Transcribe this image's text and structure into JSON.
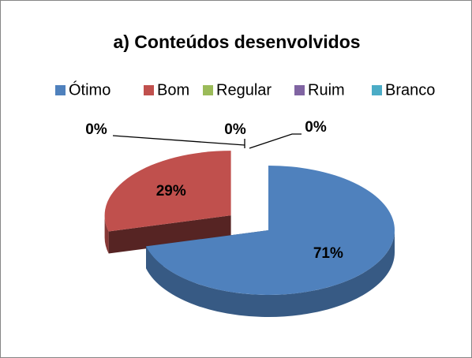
{
  "chart_data": {
    "type": "pie",
    "title": "a) Conteúdos desenvolvidos",
    "categories": [
      "Ótimo",
      "Bom",
      "Regular",
      "Ruim",
      "Branco"
    ],
    "values": [
      71,
      29,
      0,
      0,
      0
    ],
    "value_labels": [
      "71%",
      "29%",
      "0%",
      "0%",
      "0%"
    ],
    "colors": [
      "#4f81bd",
      "#c0504d",
      "#9bbb59",
      "#8064a2",
      "#4bacc6"
    ],
    "legend": "top"
  }
}
